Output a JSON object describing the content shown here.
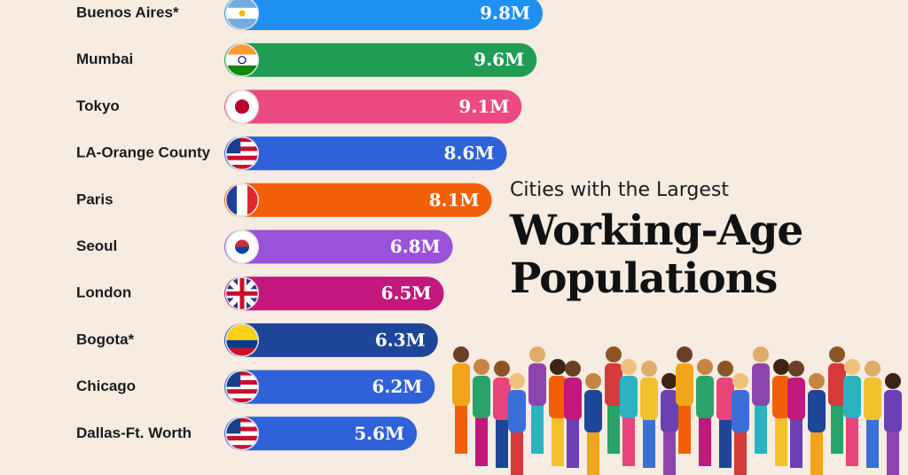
{
  "chart_data": {
    "type": "bar",
    "orientation": "horizontal",
    "subtitle": "Cities with the Largest",
    "title": "Working-Age Populations",
    "categories": [
      "Buenos Aires*",
      "Mumbai",
      "Tokyo",
      "LA-Orange County",
      "Paris",
      "Seoul",
      "London",
      "Bogota*",
      "Chicago",
      "Dallas-Ft. Worth"
    ],
    "series": [
      {
        "values": [
          9.8,
          9.6,
          9.1,
          8.6,
          8.1,
          6.8,
          6.5,
          6.3,
          6.2,
          5.6
        ],
        "value_labels": [
          "9.8M",
          "9.6M",
          "9.1M",
          "8.6M",
          "8.1M",
          "6.8M",
          "6.5M",
          "6.3M",
          "6.2M",
          "5.6M"
        ],
        "colors": [
          "#1f8ff2",
          "#1f9d55",
          "#ec4a80",
          "#2f62d8",
          "#f25f08",
          "#9a52da",
          "#c2177c",
          "#1d4699",
          "#2f62d8",
          "#2f62d8"
        ]
      }
    ]
  }
}
